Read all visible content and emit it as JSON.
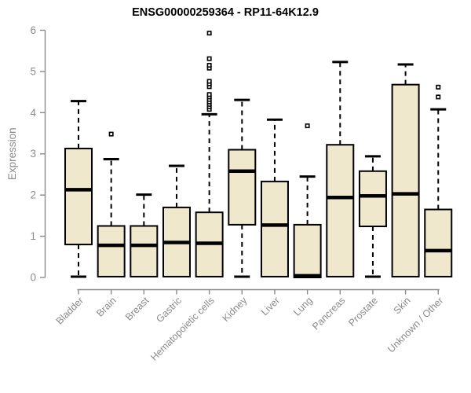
{
  "chart_data": {
    "type": "boxplot",
    "title": "ENSG00000259364 - RP11-64K12.9",
    "ylabel": "Expression",
    "xlabel": "",
    "ylim": [
      0,
      6
    ],
    "yticks": [
      0,
      1,
      2,
      3,
      4,
      5,
      6
    ],
    "grid": false,
    "legend": "none",
    "categories": [
      "Bladder",
      "Brain",
      "Breast",
      "Gastric",
      "Hematopoietic cells",
      "Kidney",
      "Liver",
      "Lung",
      "Pancreas",
      "Prostate",
      "Skin",
      "Unknown / Other"
    ],
    "series": [
      {
        "category": "Bladder",
        "whisker_low": 0.02,
        "q1": 0.8,
        "median": 2.13,
        "q3": 3.13,
        "whisker_high": 4.28,
        "outliers": []
      },
      {
        "category": "Brain",
        "whisker_low": 0.02,
        "q1": 0.02,
        "median": 0.78,
        "q3": 1.25,
        "whisker_high": 2.87,
        "outliers": [
          3.48
        ]
      },
      {
        "category": "Breast",
        "whisker_low": 0.02,
        "q1": 0.02,
        "median": 0.78,
        "q3": 1.25,
        "whisker_high": 2.01,
        "outliers": []
      },
      {
        "category": "Gastric",
        "whisker_low": 0.02,
        "q1": 0.02,
        "median": 0.85,
        "q3": 1.7,
        "whisker_high": 2.71,
        "outliers": []
      },
      {
        "category": "Hematopoietic cells",
        "whisker_low": 0.02,
        "q1": 0.02,
        "median": 0.83,
        "q3": 1.58,
        "whisker_high": 3.96,
        "outliers": [
          4.08,
          4.14,
          4.2,
          4.26,
          4.32,
          4.38,
          4.44,
          4.63,
          4.7,
          4.76,
          5.08,
          5.15,
          5.31,
          5.93
        ]
      },
      {
        "category": "Kidney",
        "whisker_low": 0.02,
        "q1": 1.28,
        "median": 2.58,
        "q3": 3.1,
        "whisker_high": 4.31,
        "outliers": []
      },
      {
        "category": "Liver",
        "whisker_low": 0.02,
        "q1": 0.02,
        "median": 1.27,
        "q3": 2.33,
        "whisker_high": 3.83,
        "outliers": []
      },
      {
        "category": "Lung",
        "whisker_low": 0.0,
        "q1": 0.0,
        "median": 0.04,
        "q3": 1.28,
        "whisker_high": 2.45,
        "outliers": [
          3.68
        ]
      },
      {
        "category": "Pancreas",
        "whisker_low": 0.02,
        "q1": 0.02,
        "median": 1.94,
        "q3": 3.22,
        "whisker_high": 5.23,
        "outliers": []
      },
      {
        "category": "Prostate",
        "whisker_low": 0.02,
        "q1": 1.24,
        "median": 1.98,
        "q3": 2.58,
        "whisker_high": 2.94,
        "outliers": []
      },
      {
        "category": "Skin",
        "whisker_low": 0.02,
        "q1": 0.02,
        "median": 2.03,
        "q3": 4.68,
        "whisker_high": 5.17,
        "outliers": []
      },
      {
        "category": "Unknown / Other",
        "whisker_low": 0.02,
        "q1": 0.02,
        "median": 0.65,
        "q3": 1.65,
        "whisker_high": 4.08,
        "outliers": [
          4.38,
          4.62
        ]
      }
    ],
    "colors": {
      "box_fill": "#efe8cc",
      "box_border": "#000000",
      "median": "#000000",
      "whisker": "#000000",
      "outlier": "#000000",
      "axis": "#8a8a8a",
      "tick_label": "#8a8a8a",
      "axis_label": "#8a8a8a",
      "title": "#000000",
      "background": "#ffffff"
    }
  }
}
